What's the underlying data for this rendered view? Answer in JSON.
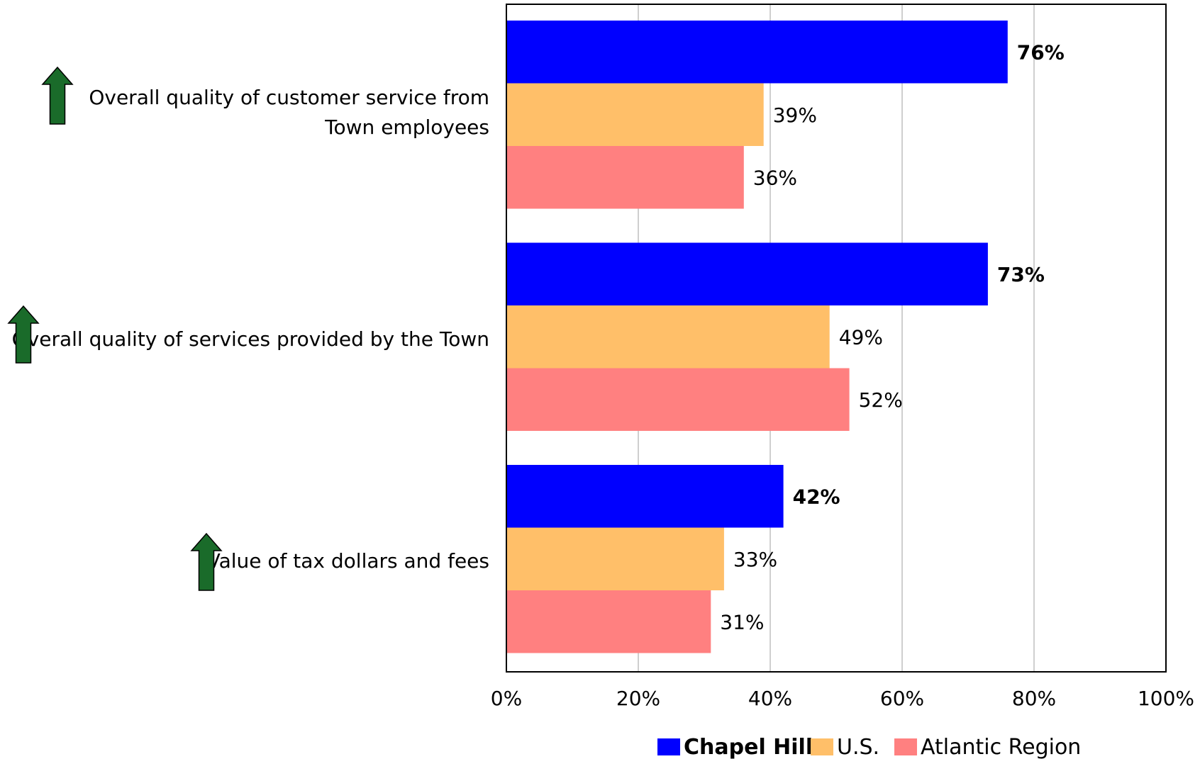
{
  "chart_data": {
    "type": "bar",
    "orientation": "horizontal",
    "categories": [
      [
        "Overall quality of customer service from",
        "Town employees"
      ],
      [
        "Overall quality of services provided by the Town"
      ],
      [
        "Value of tax dollars and fees"
      ]
    ],
    "series": [
      {
        "name": "Chapel Hill",
        "values": [
          76,
          73,
          42
        ],
        "color": "#0000ff",
        "bold": true
      },
      {
        "name": "U.S.",
        "values": [
          39,
          49,
          33
        ],
        "color": "#ffbf69",
        "bold": false
      },
      {
        "name": "Atlantic Region",
        "values": [
          36,
          52,
          31
        ],
        "color": "#ff8080",
        "bold": false
      }
    ],
    "xlim": [
      0,
      100
    ],
    "x_ticks": [
      "0%",
      "20%",
      "40%",
      "60%",
      "80%",
      "100%"
    ],
    "value_suffix": "%",
    "grid": "vertical",
    "legend_position": "bottom",
    "trend_icon": "up-arrow-icon",
    "trend_icon_color": "#1a6b2a"
  }
}
